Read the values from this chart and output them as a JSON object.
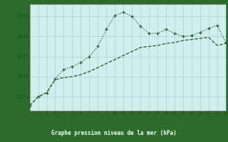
{
  "title": "Graphe pression niveau de la mer (hPa)",
  "bg_plot": "#d0eeee",
  "bg_label": "#2d6b2d",
  "line_color": "#1a5c1a",
  "title_color": "#ffffff",
  "tick_color": "#1a5c1a",
  "grid_color": "#b0cccc",
  "y_ticks": [
    1025,
    1026,
    1027,
    1028,
    1029
  ],
  "ylim": [
    1024.3,
    1029.6
  ],
  "xlim": [
    0,
    23
  ],
  "series1_x": [
    0,
    1,
    2,
    3,
    4,
    5,
    6,
    7,
    8,
    9,
    10,
    11,
    12,
    13,
    14,
    15,
    16,
    17,
    18,
    19,
    20,
    21,
    22,
    23
  ],
  "series1_y": [
    1024.55,
    1025.0,
    1025.2,
    1025.9,
    1026.35,
    1026.5,
    1026.7,
    1027.0,
    1027.5,
    1028.35,
    1029.05,
    1029.2,
    1029.0,
    1028.5,
    1028.15,
    1028.15,
    1028.35,
    1028.15,
    1028.0,
    1028.05,
    1028.2,
    1028.4,
    1028.55,
    1027.7
  ],
  "series2_x": [
    0,
    1,
    2,
    3,
    4,
    5,
    6,
    7,
    8,
    9,
    10,
    11,
    12,
    13,
    14,
    15,
    16,
    17,
    18,
    19,
    20,
    21,
    22,
    23
  ],
  "series2_y": [
    1024.55,
    1025.0,
    1025.2,
    1025.85,
    1025.95,
    1026.0,
    1026.1,
    1026.25,
    1026.45,
    1026.65,
    1026.85,
    1027.05,
    1027.25,
    1027.45,
    1027.5,
    1027.55,
    1027.65,
    1027.7,
    1027.8,
    1027.85,
    1027.9,
    1027.95,
    1027.55,
    1027.65
  ]
}
